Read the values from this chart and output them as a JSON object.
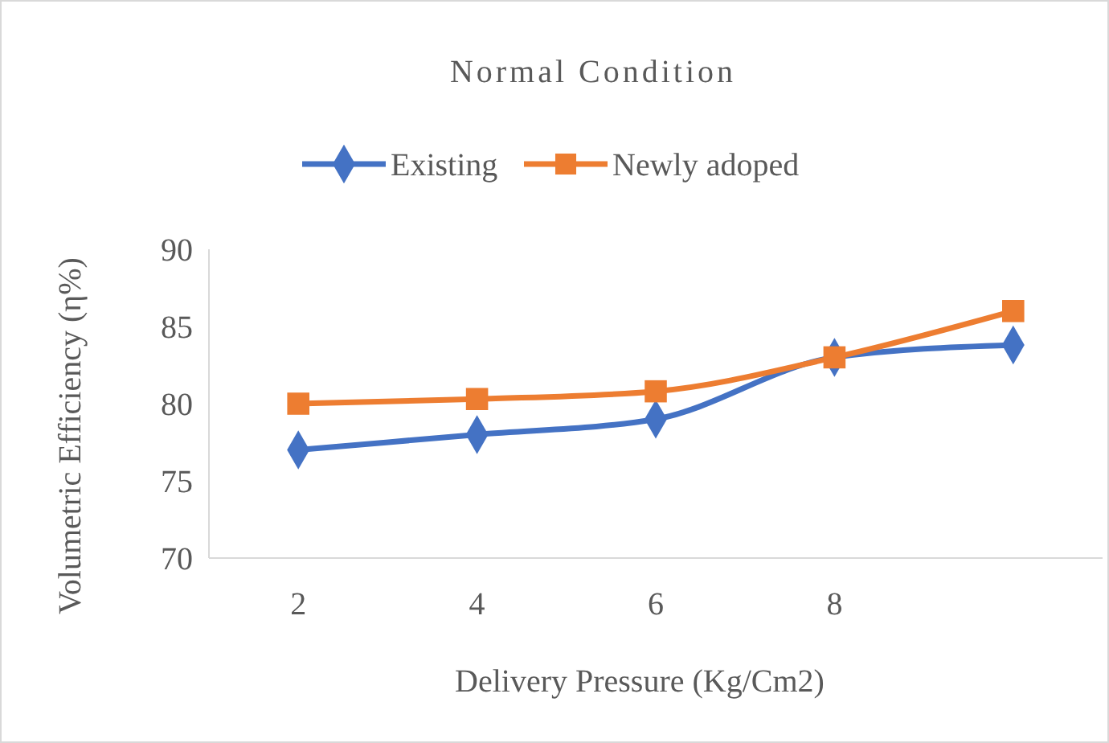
{
  "chart_data": {
    "type": "line",
    "title": "Normal Condition",
    "xlabel": "Delivery Pressure (Kg/Cm2)",
    "ylabel": "Volumetric Efficiency (η%)",
    "categories": [
      "2",
      "4",
      "6",
      "8",
      null
    ],
    "series": [
      {
        "name": "Existing",
        "color": "#4472c4",
        "marker": "diamond",
        "values": [
          77,
          78,
          79,
          83,
          83.8
        ]
      },
      {
        "name": "Newly adoped",
        "color": "#ed7d31",
        "marker": "square",
        "values": [
          80,
          80.3,
          80.8,
          83,
          86
        ]
      }
    ],
    "ylim": [
      70,
      90
    ],
    "yticks": [
      70,
      75,
      80,
      85,
      90
    ],
    "grid": false,
    "legend": "top",
    "line_style": "solid"
  }
}
